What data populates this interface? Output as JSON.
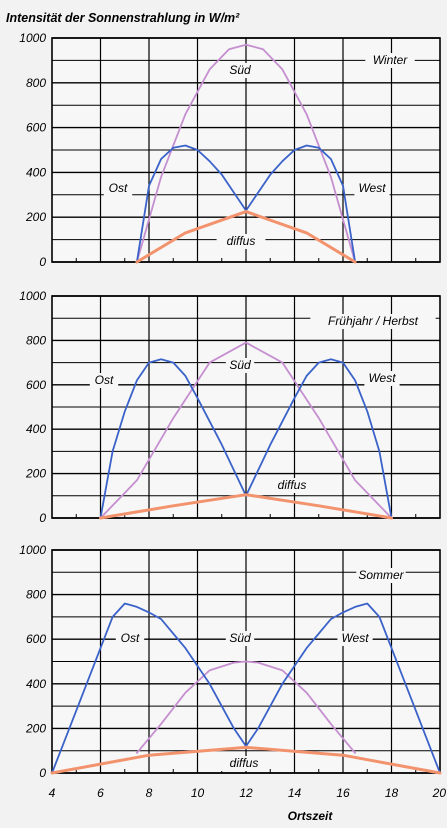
{
  "title": "Intensität der Sonnenstrahlung in W/m²",
  "xlabel": "Ortszeit",
  "x_ticks": [
    4,
    6,
    8,
    10,
    12,
    14,
    16,
    18,
    20
  ],
  "y_ticks": [
    0,
    200,
    400,
    600,
    800,
    1000
  ],
  "colors": {
    "south": "#c58fd0",
    "eastwest": "#3a62c9",
    "diffuse": "#f2936e",
    "grid": "#000000"
  },
  "chart_data": [
    {
      "type": "line",
      "season": "Winter",
      "xlim": [
        4,
        20
      ],
      "ylim": [
        0,
        1000
      ],
      "series": [
        {
          "name": "Süd",
          "color_key": "south",
          "points": [
            [
              7.5,
              0
            ],
            [
              8.5,
              380
            ],
            [
              9.5,
              660
            ],
            [
              10.5,
              860
            ],
            [
              11.3,
              950
            ],
            [
              12,
              970
            ],
            [
              12.7,
              950
            ],
            [
              13.5,
              860
            ],
            [
              14.5,
              660
            ],
            [
              15.5,
              380
            ],
            [
              16.5,
              0
            ]
          ]
        },
        {
          "name": "Ost",
          "color_key": "eastwest",
          "points": [
            [
              7.5,
              0
            ],
            [
              8,
              340
            ],
            [
              8.5,
              460
            ],
            [
              9,
              510
            ],
            [
              9.5,
              520
            ],
            [
              10,
              500
            ],
            [
              10.5,
              450
            ],
            [
              11,
              390
            ],
            [
              11.5,
              310
            ],
            [
              12,
              230
            ]
          ]
        },
        {
          "name": "West",
          "color_key": "eastwest",
          "points": [
            [
              12,
              230
            ],
            [
              12.5,
              310
            ],
            [
              13,
              390
            ],
            [
              13.5,
              450
            ],
            [
              14,
              500
            ],
            [
              14.5,
              520
            ],
            [
              15,
              510
            ],
            [
              15.5,
              460
            ],
            [
              16,
              340
            ],
            [
              16.5,
              0
            ]
          ]
        },
        {
          "name": "diffus",
          "color_key": "diffuse",
          "points": [
            [
              7.5,
              0
            ],
            [
              9.5,
              130
            ],
            [
              12,
              225
            ],
            [
              14.5,
              130
            ],
            [
              16.5,
              0
            ]
          ]
        }
      ]
    },
    {
      "type": "line",
      "season": "Frühjahr / Herbst",
      "xlim": [
        4,
        20
      ],
      "ylim": [
        0,
        1000
      ],
      "series": [
        {
          "name": "Süd",
          "color_key": "south",
          "points": [
            [
              6,
              0
            ],
            [
              7.5,
              170
            ],
            [
              9,
              450
            ],
            [
              10.5,
              700
            ],
            [
              12,
              790
            ],
            [
              13.5,
              700
            ],
            [
              15,
              450
            ],
            [
              16.5,
              170
            ],
            [
              18,
              0
            ]
          ]
        },
        {
          "name": "Ost",
          "color_key": "eastwest",
          "points": [
            [
              6,
              0
            ],
            [
              6.5,
              300
            ],
            [
              7,
              480
            ],
            [
              7.5,
              620
            ],
            [
              8,
              700
            ],
            [
              8.5,
              715
            ],
            [
              9,
              700
            ],
            [
              9.5,
              640
            ],
            [
              10,
              540
            ],
            [
              11,
              330
            ],
            [
              12,
              100
            ]
          ]
        },
        {
          "name": "West",
          "color_key": "eastwest",
          "points": [
            [
              12,
              100
            ],
            [
              13,
              330
            ],
            [
              14,
              540
            ],
            [
              14.5,
              640
            ],
            [
              15,
              700
            ],
            [
              15.5,
              715
            ],
            [
              16,
              700
            ],
            [
              16.5,
              620
            ],
            [
              17,
              480
            ],
            [
              17.5,
              300
            ],
            [
              18,
              0
            ]
          ]
        },
        {
          "name": "diffus",
          "color_key": "diffuse",
          "points": [
            [
              6,
              0
            ],
            [
              9,
              55
            ],
            [
              12,
              105
            ],
            [
              15,
              55
            ],
            [
              18,
              0
            ]
          ]
        }
      ]
    },
    {
      "type": "line",
      "season": "Sommer",
      "xlim": [
        4,
        20
      ],
      "ylim": [
        0,
        1000
      ],
      "series": [
        {
          "name": "Süd",
          "color_key": "south",
          "points": [
            [
              7.5,
              90
            ],
            [
              8.5,
              220
            ],
            [
              9.5,
              360
            ],
            [
              10.5,
              460
            ],
            [
              11.5,
              495
            ],
            [
              12,
              500
            ],
            [
              12.5,
              495
            ],
            [
              13.5,
              460
            ],
            [
              14.5,
              360
            ],
            [
              15.5,
              220
            ],
            [
              16.5,
              90
            ]
          ]
        },
        {
          "name": "Ost",
          "color_key": "eastwest",
          "points": [
            [
              4,
              0
            ],
            [
              5,
              280
            ],
            [
              6,
              560
            ],
            [
              6.5,
              700
            ],
            [
              7,
              760
            ],
            [
              7.5,
              745
            ],
            [
              8,
              720
            ],
            [
              8.5,
              690
            ],
            [
              9.5,
              560
            ],
            [
              10.5,
              400
            ],
            [
              11.5,
              200
            ],
            [
              12,
              120
            ]
          ]
        },
        {
          "name": "West",
          "color_key": "eastwest",
          "points": [
            [
              12,
              120
            ],
            [
              12.5,
              200
            ],
            [
              13.5,
              400
            ],
            [
              14.5,
              560
            ],
            [
              15.5,
              690
            ],
            [
              16,
              720
            ],
            [
              16.5,
              745
            ],
            [
              17,
              760
            ],
            [
              17.5,
              700
            ],
            [
              18,
              560
            ],
            [
              19,
              280
            ],
            [
              20,
              0
            ]
          ]
        },
        {
          "name": "diffus",
          "color_key": "diffuse",
          "points": [
            [
              4,
              0
            ],
            [
              8,
              80
            ],
            [
              12,
              115
            ],
            [
              16,
              80
            ],
            [
              20,
              0
            ]
          ]
        }
      ]
    }
  ]
}
